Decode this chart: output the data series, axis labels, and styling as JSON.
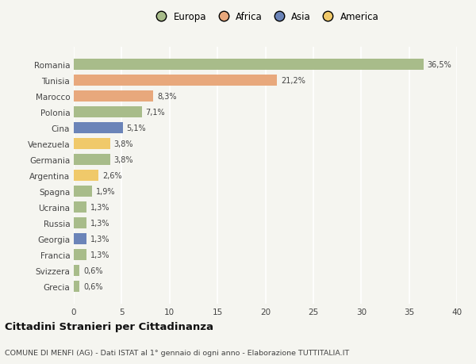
{
  "categories": [
    "Grecia",
    "Svizzera",
    "Francia",
    "Georgia",
    "Russia",
    "Ucraina",
    "Spagna",
    "Argentina",
    "Germania",
    "Venezuela",
    "Cina",
    "Polonia",
    "Marocco",
    "Tunisia",
    "Romania"
  ],
  "values": [
    0.6,
    0.6,
    1.3,
    1.3,
    1.3,
    1.3,
    1.9,
    2.6,
    3.8,
    3.8,
    5.1,
    7.1,
    8.3,
    21.2,
    36.5
  ],
  "labels": [
    "0,6%",
    "0,6%",
    "1,3%",
    "1,3%",
    "1,3%",
    "1,3%",
    "1,9%",
    "2,6%",
    "3,8%",
    "3,8%",
    "5,1%",
    "7,1%",
    "8,3%",
    "21,2%",
    "36,5%"
  ],
  "colors": [
    "#a8bc8a",
    "#a8bc8a",
    "#a8bc8a",
    "#6b84b8",
    "#a8bc8a",
    "#a8bc8a",
    "#a8bc8a",
    "#f0c96a",
    "#a8bc8a",
    "#f0c96a",
    "#6b84b8",
    "#a8bc8a",
    "#e8a87c",
    "#e8a87c",
    "#a8bc8a"
  ],
  "title": "Cittadini Stranieri per Cittadinanza",
  "subtitle": "COMUNE DI MENFI (AG) - Dati ISTAT al 1° gennaio di ogni anno - Elaborazione TUTTITALIA.IT",
  "xlim": [
    0,
    40
  ],
  "xticks": [
    0,
    5,
    10,
    15,
    20,
    25,
    30,
    35,
    40
  ],
  "background_color": "#f5f5f0",
  "bar_height": 0.7,
  "legend_labels": [
    "Europa",
    "Africa",
    "Asia",
    "America"
  ],
  "legend_colors": [
    "#a8bc8a",
    "#e8a87c",
    "#6b84b8",
    "#f0c96a"
  ]
}
